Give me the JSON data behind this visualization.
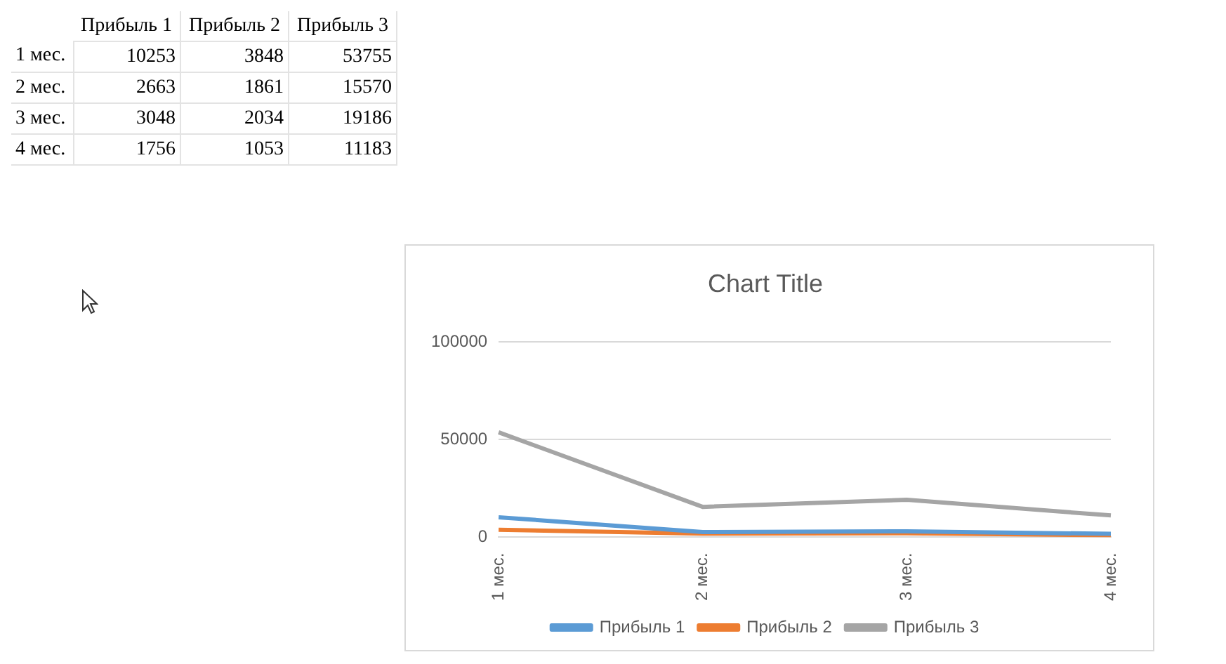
{
  "chart_data": [
    {
      "type": "heatmap",
      "categories": [
        "Прибыль 1",
        "Прибыль 2",
        "Прибыль 3"
      ],
      "y_categories": [
        "1 мес.",
        "2 мес.",
        "3 мес.",
        "4 мес."
      ],
      "cells": [
        [
          10253,
          3848,
          53755
        ],
        [
          2663,
          1861,
          15570
        ],
        [
          3048,
          2034,
          19186
        ],
        [
          1756,
          1053,
          11183
        ]
      ],
      "data_labels": true
    },
    {
      "type": "line",
      "title": "Chart Title",
      "categories": [
        "1 мес.",
        "2 мес.",
        "3 мес.",
        "4 мес."
      ],
      "series": [
        {
          "name": "Прибыль 1",
          "color": "#5b9bd5",
          "values": [
            10253,
            2663,
            3048,
            1756
          ]
        },
        {
          "name": "Прибыль 2",
          "color": "#ed7d31",
          "values": [
            3848,
            1861,
            2034,
            1053
          ]
        },
        {
          "name": "Прибыль 3",
          "color": "#a5a5a5",
          "values": [
            53755,
            15570,
            19186,
            11183
          ]
        }
      ],
      "ylim": [
        0,
        100000
      ],
      "yticks": [
        0,
        50000,
        100000
      ],
      "grid": "y",
      "legend": "bottom",
      "marker": "none"
    }
  ]
}
